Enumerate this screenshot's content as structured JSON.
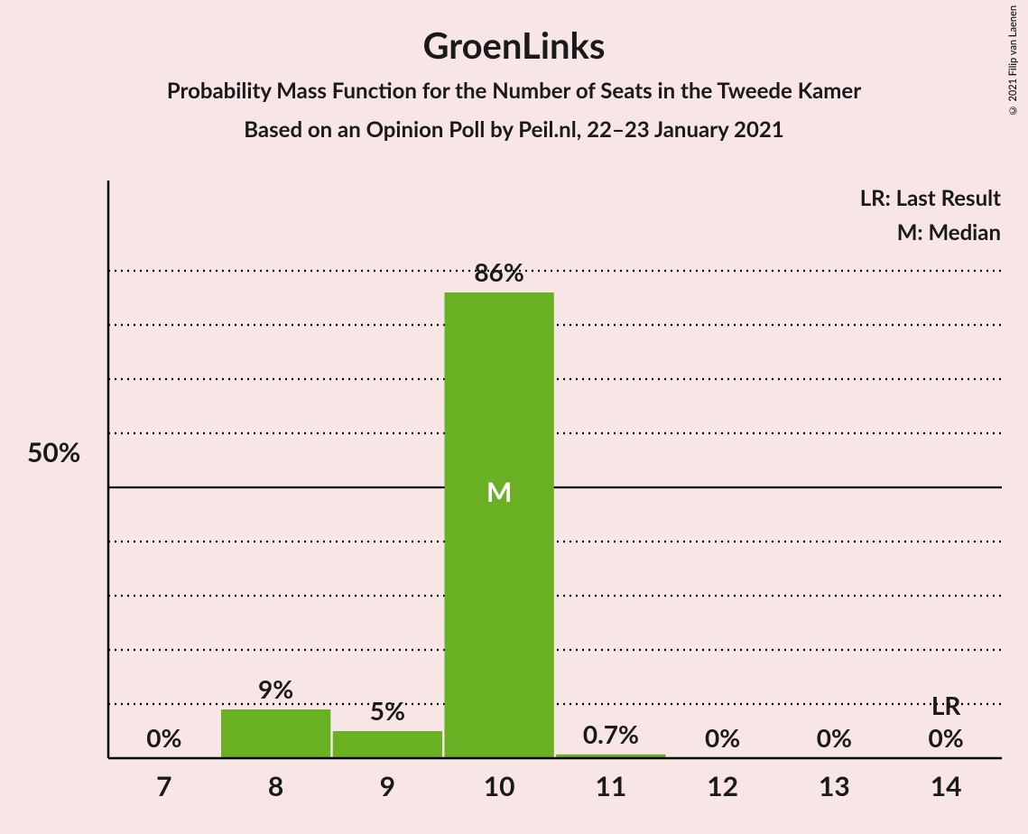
{
  "title": "GroenLinks",
  "subtitle1": "Probability Mass Function for the Number of Seats in the Tweede Kamer",
  "subtitle2": "Based on an Opinion Poll by Peil.nl, 22–23 January 2021",
  "copyright": "© 2021 Filip van Laenen",
  "legend": {
    "lr": "LR: Last Result",
    "m": "M: Median"
  },
  "chart": {
    "type": "bar",
    "background_color": "#f8e6e6",
    "bar_color": "#6ab023",
    "axis_color": "#000000",
    "grid_color": "#000000",
    "text_color": "#1a1a1a",
    "median_text_color": "#ffffff",
    "ylim": [
      0,
      100
    ],
    "y_major_tick": 50,
    "y_major_label": "50%",
    "y_minor_step": 10,
    "categories": [
      "7",
      "8",
      "9",
      "10",
      "11",
      "12",
      "13",
      "14"
    ],
    "values": [
      0,
      9,
      5,
      86,
      0.7,
      0,
      0,
      0
    ],
    "value_labels": [
      "0%",
      "9%",
      "5%",
      "86%",
      "0.7%",
      "0%",
      "0%",
      "0%"
    ],
    "median_index": 3,
    "median_marker": "M",
    "lr_index": 7,
    "lr_marker": "LR",
    "bar_width_ratio": 0.98,
    "title_fontsize": 40,
    "subtitle_fontsize": 24,
    "label_fontsize": 28,
    "tick_fontsize": 30
  }
}
